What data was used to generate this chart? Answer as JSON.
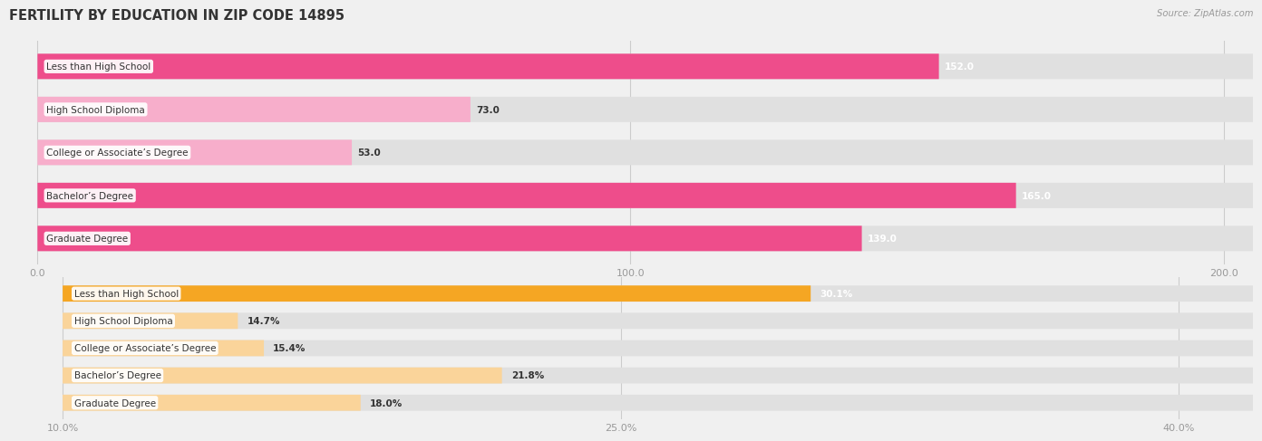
{
  "title": "FERTILITY BY EDUCATION IN ZIP CODE 14895",
  "source": "Source: ZipAtlas.com",
  "top_chart": {
    "categories": [
      "Less than High School",
      "High School Diploma",
      "College or Associate’s Degree",
      "Bachelor’s Degree",
      "Graduate Degree"
    ],
    "values": [
      152.0,
      73.0,
      53.0,
      165.0,
      139.0
    ],
    "bar_color_dark": "#EE4D8B",
    "bar_color_light": "#F7AECB",
    "xlim": [
      -2,
      205
    ],
    "xticks": [
      0.0,
      100.0,
      200.0
    ],
    "xticklabels": [
      "0.0",
      "100.0",
      "200.0"
    ]
  },
  "bottom_chart": {
    "categories": [
      "Less than High School",
      "High School Diploma",
      "College or Associate’s Degree",
      "Bachelor’s Degree",
      "Graduate Degree"
    ],
    "values": [
      30.1,
      14.7,
      15.4,
      21.8,
      18.0
    ],
    "bar_color_dark": "#F5A623",
    "bar_color_light": "#FAD49A",
    "xlim": [
      9.0,
      42.0
    ],
    "xticks": [
      10.0,
      25.0,
      40.0
    ],
    "xticklabels": [
      "10.0%",
      "25.0%",
      "40.0%"
    ]
  },
  "label_fontsize": 7.5,
  "value_fontsize": 7.5,
  "title_fontsize": 10.5,
  "bg_color": "#f0f0f0",
  "bar_bg_color": "#e0e0e0",
  "white": "#ffffff",
  "dark_text": "#333333",
  "gray_text": "#999999"
}
